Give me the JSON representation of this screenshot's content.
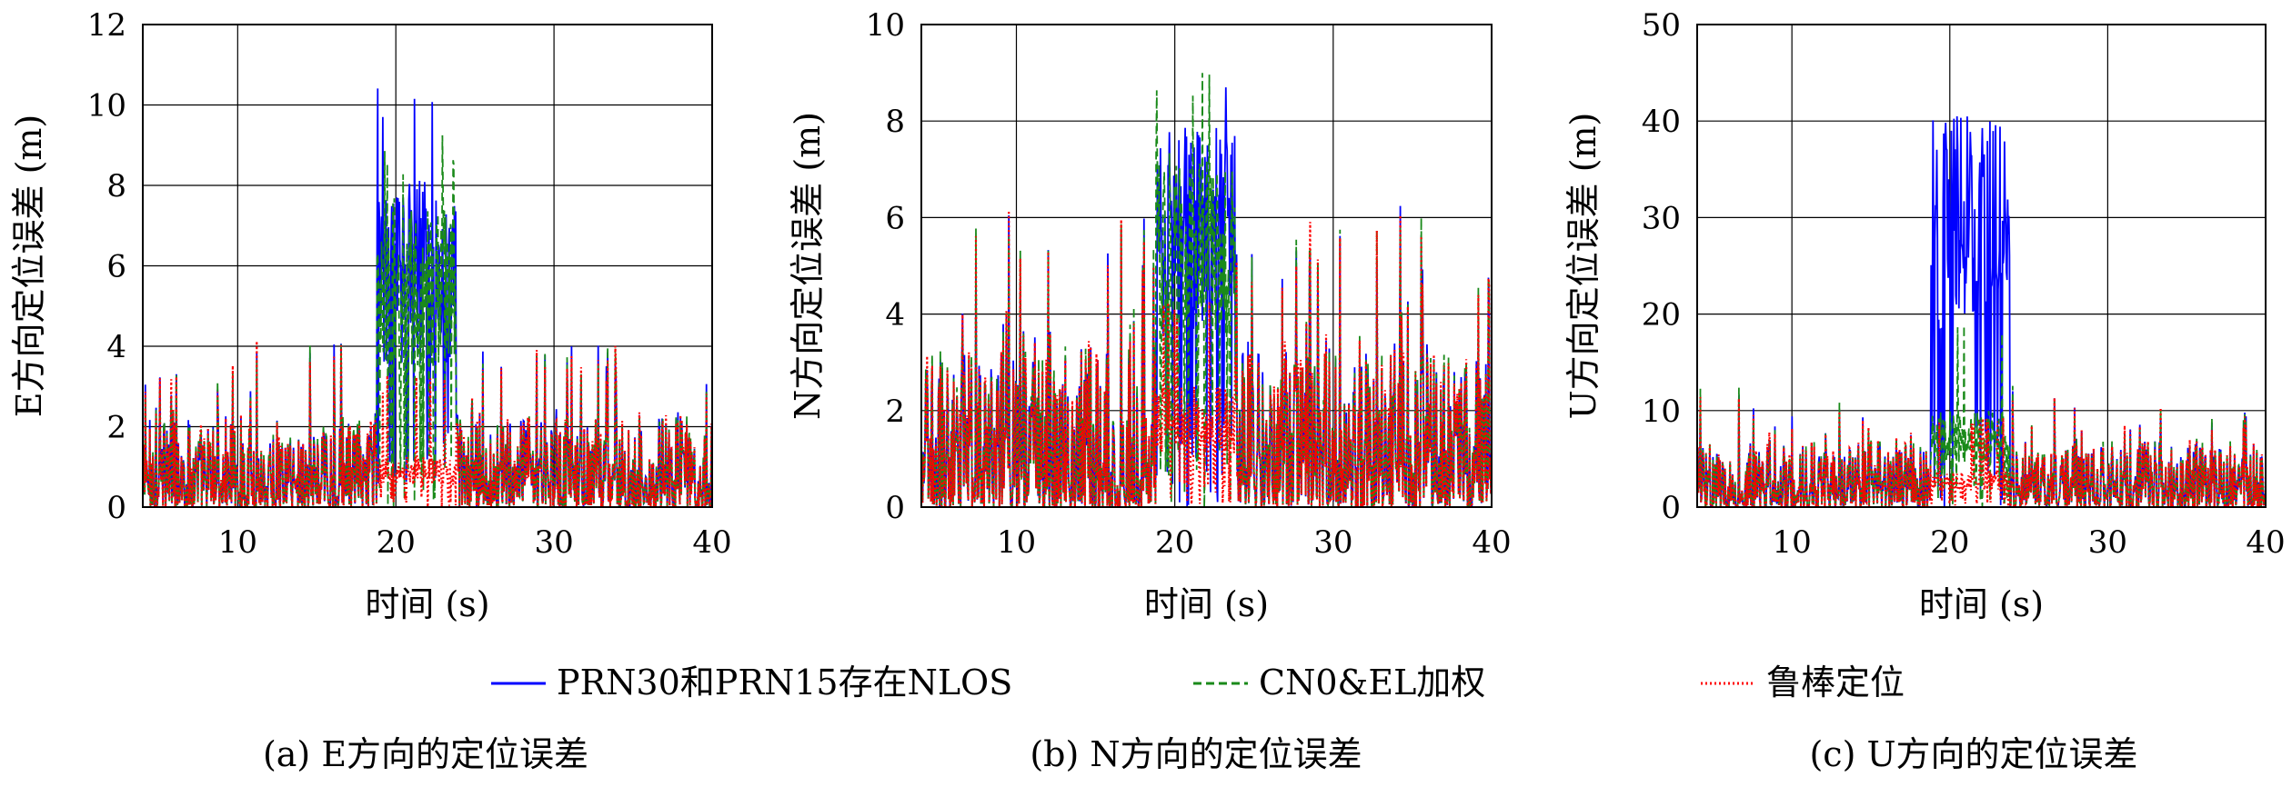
{
  "colors": {
    "blue": "#0000ff",
    "green": "#1a8a1a",
    "red": "#ff0000",
    "grid": "#000000",
    "axis": "#000000"
  },
  "legend": {
    "series1": "PRN30和PRN15存在NLOS",
    "series2": "CN0&EL加权",
    "series3": "鲁棒定位"
  },
  "chart_data": [
    {
      "type": "line",
      "xlabel": "时间 (s)",
      "ylabel": "E方向定位误差 (m)",
      "caption": "(a) E方向的定位误差",
      "xlim": [
        4,
        40
      ],
      "ylim": [
        0,
        12
      ],
      "xticks": [
        10,
        20,
        30,
        40
      ],
      "yticks": [
        0,
        2,
        4,
        6,
        8,
        10,
        12
      ],
      "grid": true,
      "nlos_interval": [
        18.8,
        23.8
      ],
      "series": [
        {
          "name": "PRN30和PRN15存在NLOS",
          "style": "solid",
          "base_peak": 4.0,
          "nlos_level": 6.5,
          "nlos_peak": 10.6
        },
        {
          "name": "CN0&EL加权",
          "style": "dashed",
          "base_peak": 4.0,
          "nlos_level": 6.2,
          "nlos_peak": 9.3
        },
        {
          "name": "鲁棒定位",
          "style": "dotted",
          "base_peak": 4.0,
          "nlos_level": 1.0,
          "nlos_peak": 3.3
        }
      ]
    },
    {
      "type": "line",
      "xlabel": "时间 (s)",
      "ylabel": "N方向定位误差 (m)",
      "caption": "(b) N方向的定位误差",
      "xlim": [
        4,
        40
      ],
      "ylim": [
        0,
        10
      ],
      "xticks": [
        10,
        20,
        30,
        40
      ],
      "yticks": [
        0,
        2,
        4,
        6,
        8,
        10
      ],
      "grid": true,
      "nlos_interval": [
        18.8,
        23.8
      ],
      "series": [
        {
          "name": "PRN30和PRN15存在NLOS",
          "style": "solid",
          "base_peak": 5.9,
          "nlos_level": 6.5,
          "nlos_peak": 9.0
        },
        {
          "name": "CN0&EL加权",
          "style": "dashed",
          "base_peak": 5.9,
          "nlos_level": 6.0,
          "nlos_peak": 9.4
        },
        {
          "name": "鲁棒定位",
          "style": "dotted",
          "base_peak": 5.9,
          "nlos_level": 2.0,
          "nlos_peak": 4.4
        }
      ]
    },
    {
      "type": "line",
      "xlabel": "时间 (s)",
      "ylabel": "U方向定位误差 (m)",
      "caption": "(c) U方向的定位误差",
      "xlim": [
        4,
        40
      ],
      "ylim": [
        0,
        50
      ],
      "xticks": [
        10,
        20,
        30,
        40
      ],
      "yticks": [
        0,
        10,
        20,
        30,
        40,
        50
      ],
      "grid": true,
      "nlos_interval": [
        18.8,
        23.8
      ],
      "series": [
        {
          "name": "PRN30和PRN15存在NLOS",
          "style": "solid",
          "base_peak": 12.0,
          "nlos_level": 33.0,
          "nlos_peak": 41.8
        },
        {
          "name": "CN0&EL加权",
          "style": "dashed",
          "base_peak": 12.0,
          "nlos_level": 8.0,
          "nlos_peak": 20.0
        },
        {
          "name": "鲁棒定位",
          "style": "dotted",
          "base_peak": 12.0,
          "nlos_level": 3.0,
          "nlos_peak": 10.0
        }
      ]
    }
  ]
}
